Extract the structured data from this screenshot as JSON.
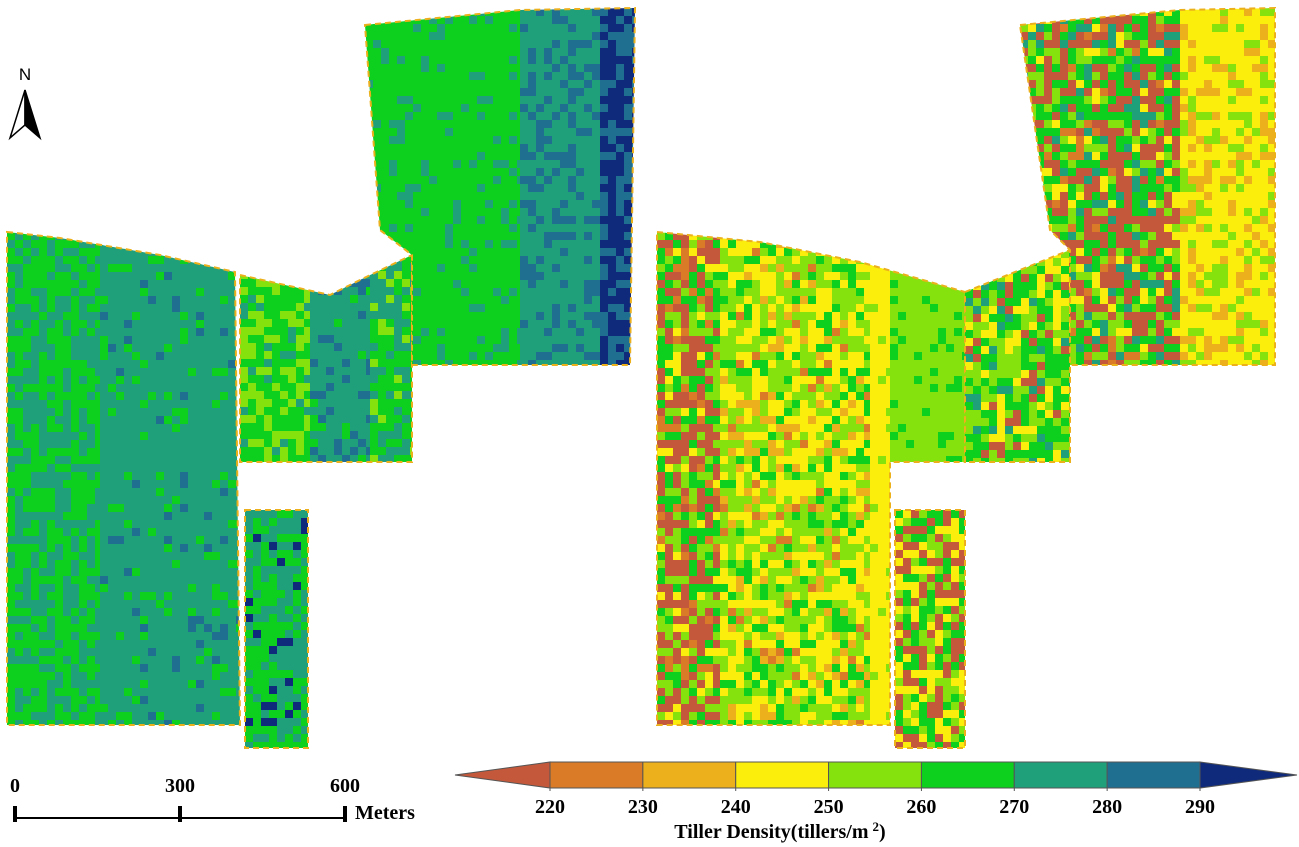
{
  "north_label": "N",
  "scale_bar": {
    "ticks": [
      0,
      300,
      600
    ],
    "unit": "Meters"
  },
  "legend": {
    "title": "Tiller Density(tillers/m",
    "title_superscript": "2",
    "title_end": ")",
    "ticks": [
      220,
      230,
      240,
      250,
      260,
      270,
      280,
      290
    ],
    "colors": [
      "#c4583a",
      "#d97b27",
      "#ebb01b",
      "#fbed0c",
      "#86e20c",
      "#0dcf1d",
      "#20a07a",
      "#1f7090",
      "#0f2a7a"
    ]
  }
}
